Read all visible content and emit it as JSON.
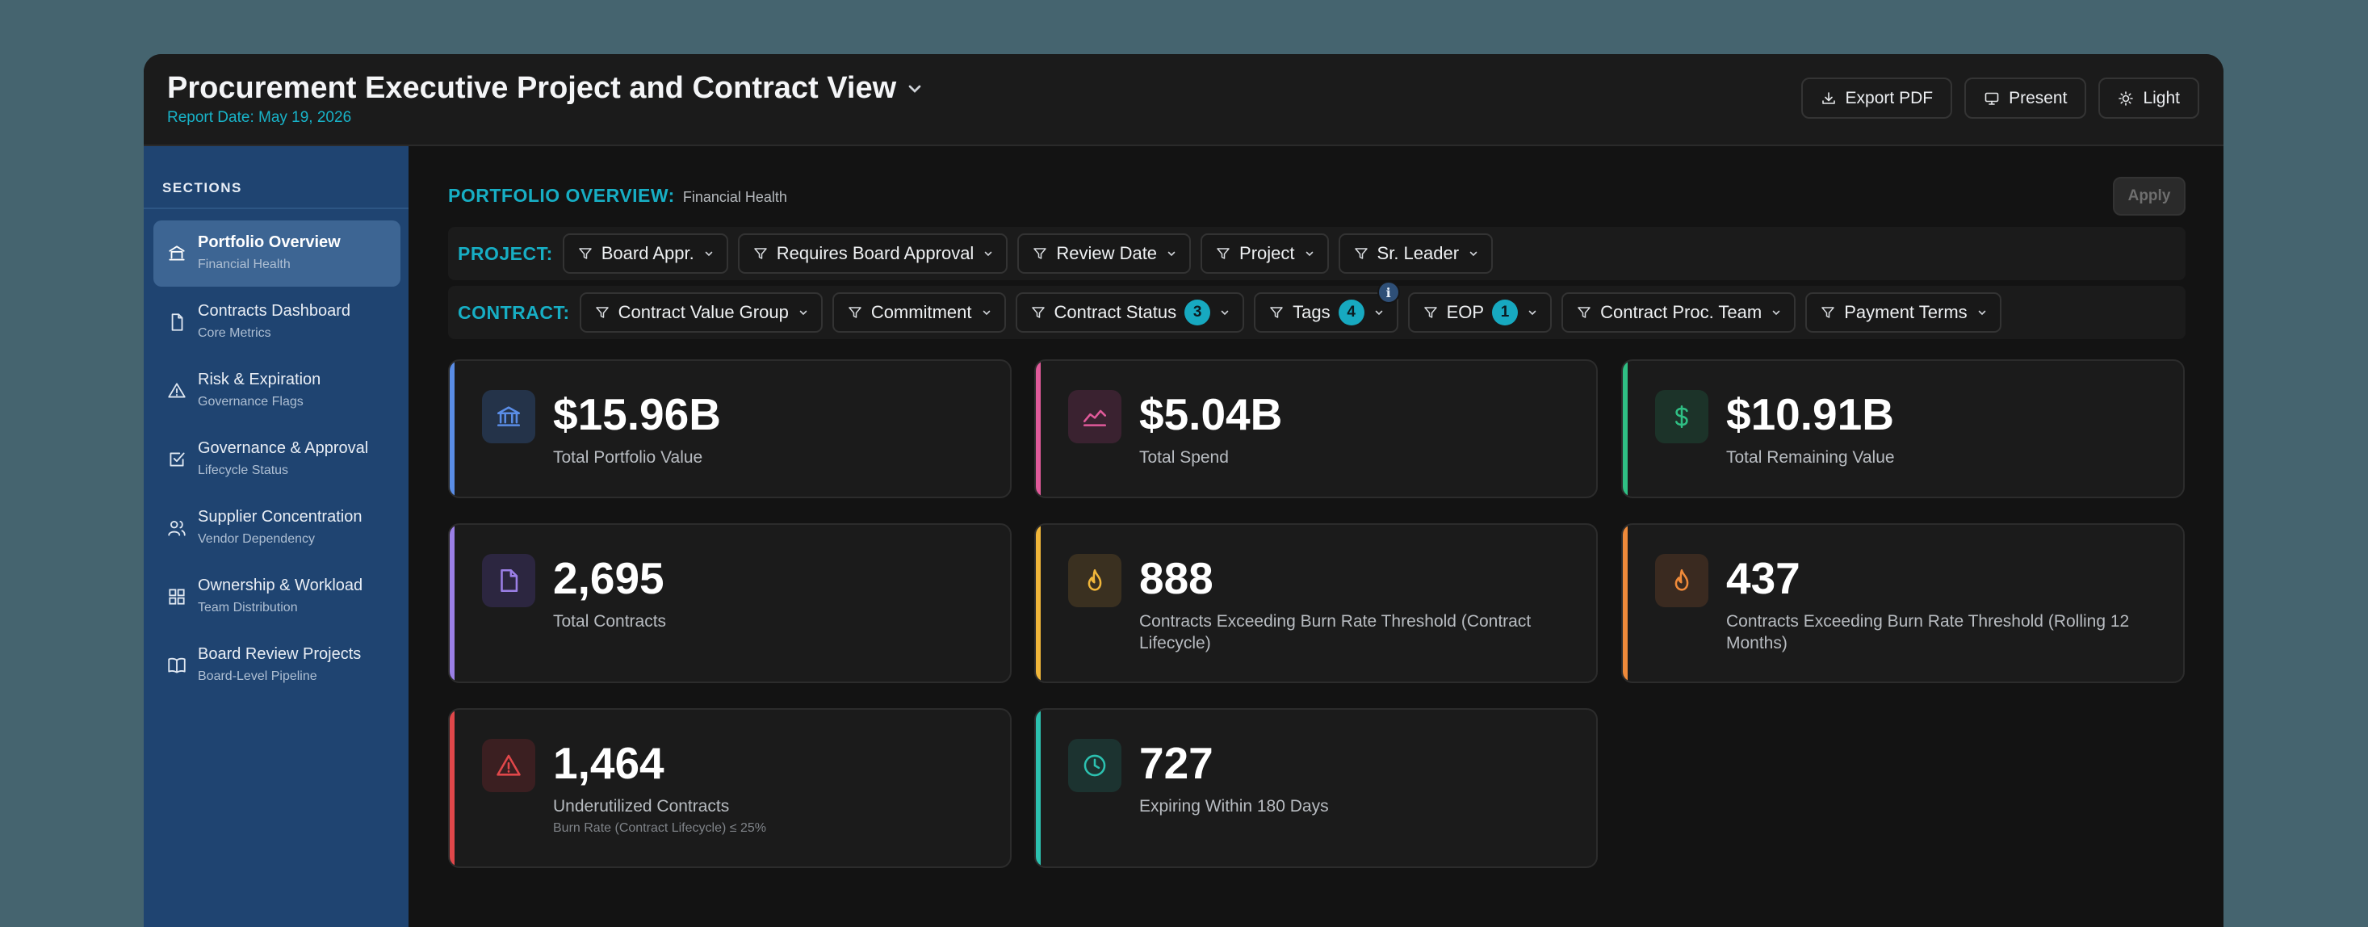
{
  "header": {
    "title": "Procurement Executive Project and Contract View",
    "report_date": "Report Date: May 19, 2026",
    "buttons": {
      "export": "Export PDF",
      "present": "Present",
      "theme": "Light"
    }
  },
  "sidebar": {
    "title": "SECTIONS",
    "items": [
      {
        "label": "Portfolio Overview",
        "sub": "Financial Health",
        "icon": "bank-icon",
        "active": true
      },
      {
        "label": "Contracts Dashboard",
        "sub": "Core Metrics",
        "icon": "document-icon"
      },
      {
        "label": "Risk & Expiration",
        "sub": "Governance Flags",
        "icon": "warning-icon"
      },
      {
        "label": "Governance & Approval",
        "sub": "Lifecycle Status",
        "icon": "checkbox-icon"
      },
      {
        "label": "Supplier Concentration",
        "sub": "Vendor Dependency",
        "icon": "users-icon"
      },
      {
        "label": "Ownership & Workload",
        "sub": "Team Distribution",
        "icon": "grid-icon"
      },
      {
        "label": "Board Review Projects",
        "sub": "Board-Level Pipeline",
        "icon": "book-icon"
      }
    ]
  },
  "main": {
    "section_title": "PORTFOLIO OVERVIEW:",
    "section_sub": "Financial Health",
    "apply": "Apply",
    "project_filters": {
      "label": "PROJECT:",
      "chips": [
        "Board Appr.",
        "Requires Board Approval",
        "Review Date",
        "Project",
        "Sr. Leader"
      ]
    },
    "contract_filters": {
      "label": "CONTRACT:",
      "chips": [
        {
          "label": "Contract Value Group"
        },
        {
          "label": "Commitment"
        },
        {
          "label": "Contract Status",
          "badge": "3"
        },
        {
          "label": "Tags",
          "badge": "4",
          "info": "i"
        },
        {
          "label": "EOP",
          "badge": "1"
        },
        {
          "label": "Contract Proc. Team"
        },
        {
          "label": "Payment Terms"
        }
      ]
    },
    "cards": [
      {
        "value": "$15.96B",
        "label": "Total Portfolio Value",
        "icon": "bank-icon",
        "color": "#5a8de6"
      },
      {
        "value": "$5.04B",
        "label": "Total Spend",
        "icon": "trend-icon",
        "color": "#e05a9a"
      },
      {
        "value": "$10.91B",
        "label": "Total Remaining Value",
        "icon": "dollar-icon",
        "color": "#2fbf84"
      },
      {
        "value": "2,695",
        "label": "Total Contracts",
        "icon": "document-icon",
        "color": "#9b7fe6"
      },
      {
        "value": "888",
        "label": "Contracts Exceeding Burn Rate Threshold (Contract Lifecycle)",
        "icon": "flame-icon",
        "color": "#f0b63a"
      },
      {
        "value": "437",
        "label": "Contracts Exceeding Burn Rate Threshold (Rolling 12 Months)",
        "icon": "flame-icon",
        "color": "#ef8a3a"
      },
      {
        "value": "1,464",
        "label": "Underutilized Contracts",
        "note": "Burn Rate (Contract Lifecycle) ≤ 25%",
        "icon": "warning-icon",
        "color": "#e0474a"
      },
      {
        "value": "727",
        "label": "Expiring Within 180 Days",
        "icon": "clock-icon",
        "color": "#2cc1b0"
      }
    ]
  }
}
